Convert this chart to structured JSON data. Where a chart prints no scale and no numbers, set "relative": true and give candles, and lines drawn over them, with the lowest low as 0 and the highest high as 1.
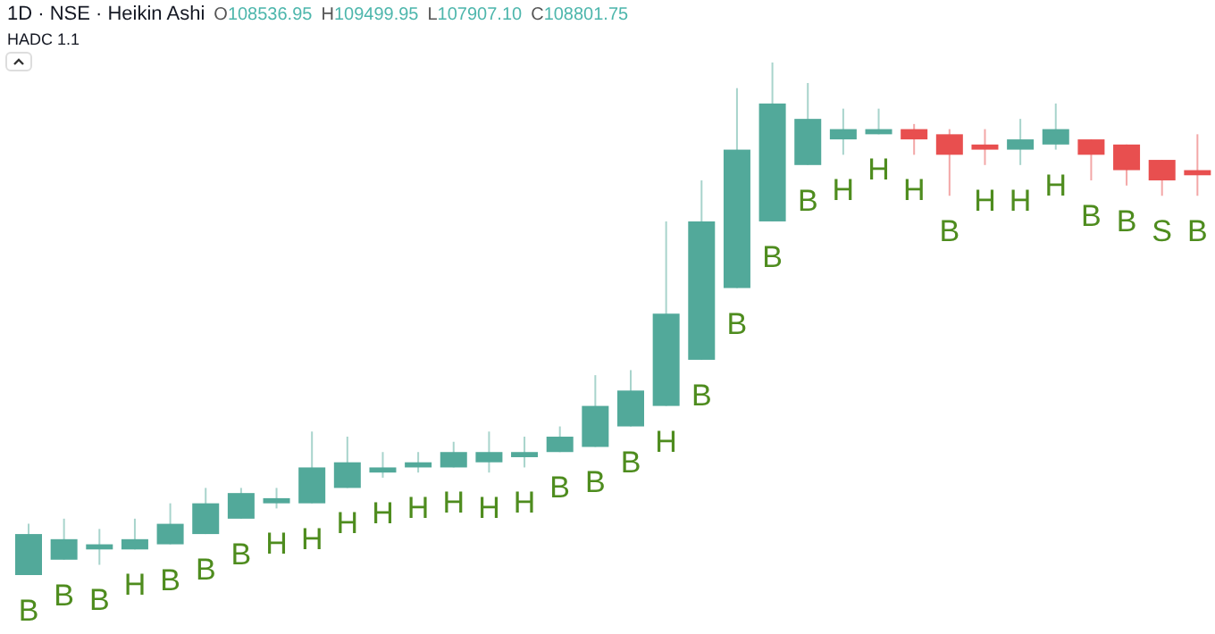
{
  "chart_data": {
    "type": "candlestick",
    "title": "1D · NSE · Heikin Ashi",
    "subtitle": "HADC 1.1",
    "annotations": [
      "O108536.95",
      "H109499.95",
      "L107907.10",
      "C108801.75"
    ],
    "relative": true,
    "categories": [
      null,
      null,
      null,
      null,
      null,
      null,
      null,
      null,
      null,
      null,
      null,
      null,
      null,
      null,
      null,
      null,
      null,
      null,
      null,
      null,
      null,
      null,
      null,
      null,
      null,
      null,
      null,
      null,
      null,
      null,
      null,
      null,
      null,
      null
    ],
    "ohlc": [
      [
        0,
        0.1,
        0,
        0.08
      ],
      [
        0.03,
        0.11,
        0.03,
        0.07
      ],
      [
        0.05,
        0.09,
        0.02,
        0.06
      ],
      [
        0.05,
        0.11,
        0.05,
        0.07
      ],
      [
        0.06,
        0.14,
        0.06,
        0.1
      ],
      [
        0.08,
        0.17,
        0.08,
        0.14
      ],
      [
        0.11,
        0.17,
        0.11,
        0.16
      ],
      [
        0.14,
        0.17,
        0.13,
        0.15
      ],
      [
        0.14,
        0.28,
        0.14,
        0.21
      ],
      [
        0.17,
        0.27,
        0.17,
        0.22
      ],
      [
        0.2,
        0.24,
        0.19,
        0.21
      ],
      [
        0.21,
        0.24,
        0.2,
        0.22
      ],
      [
        0.21,
        0.26,
        0.21,
        0.24
      ],
      [
        0.22,
        0.28,
        0.2,
        0.24
      ],
      [
        0.23,
        0.27,
        0.21,
        0.24
      ],
      [
        0.24,
        0.29,
        0.24,
        0.27
      ],
      [
        0.25,
        0.39,
        0.25,
        0.33
      ],
      [
        0.29,
        0.4,
        0.29,
        0.36
      ],
      [
        0.33,
        0.69,
        0.33,
        0.51
      ],
      [
        0.42,
        0.77,
        0.42,
        0.69
      ],
      [
        0.56,
        0.95,
        0.56,
        0.83
      ],
      [
        0.69,
        1,
        0.69,
        0.92
      ],
      [
        0.8,
        0.96,
        0.8,
        0.89
      ],
      [
        0.85,
        0.91,
        0.82,
        0.87
      ],
      [
        0.86,
        0.91,
        0.86,
        0.87
      ],
      [
        0.87,
        0.88,
        0.82,
        0.85
      ],
      [
        0.86,
        0.87,
        0.74,
        0.82
      ],
      [
        0.84,
        0.87,
        0.8,
        0.83
      ],
      [
        0.83,
        0.89,
        0.8,
        0.85
      ],
      [
        0.84,
        0.92,
        0.83,
        0.87
      ],
      [
        0.85,
        0.85,
        0.77,
        0.82
      ],
      [
        0.84,
        0.84,
        0.76,
        0.79
      ],
      [
        0.81,
        0.81,
        0.74,
        0.77
      ],
      [
        0.79,
        0.86,
        0.74,
        0.78
      ]
    ],
    "colors": [
      "#52a99a",
      "#52a99a",
      "#52a99a",
      "#52a99a",
      "#52a99a",
      "#52a99a",
      "#52a99a",
      "#52a99a",
      "#52a99a",
      "#52a99a",
      "#52a99a",
      "#52a99a",
      "#52a99a",
      "#52a99a",
      "#52a99a",
      "#52a99a",
      "#52a99a",
      "#52a99a",
      "#52a99a",
      "#52a99a",
      "#52a99a",
      "#52a99a",
      "#52a99a",
      "#52a99a",
      "#52a99a",
      "#e84f4f",
      "#e84f4f",
      "#e84f4f",
      "#52a99a",
      "#52a99a",
      "#e84f4f",
      "#e84f4f",
      "#e84f4f",
      "#e84f4f"
    ],
    "value_labels": [
      "B",
      "B",
      "B",
      "H",
      "B",
      "B",
      "B",
      "H",
      "H",
      "H",
      "H",
      "H",
      "H",
      "H",
      "H",
      "B",
      "B",
      "B",
      "H",
      "B",
      "B",
      "B",
      "B",
      "H",
      "H",
      "H",
      "B",
      "H",
      "H",
      "H",
      "B",
      "B",
      "S",
      "B"
    ]
  }
}
